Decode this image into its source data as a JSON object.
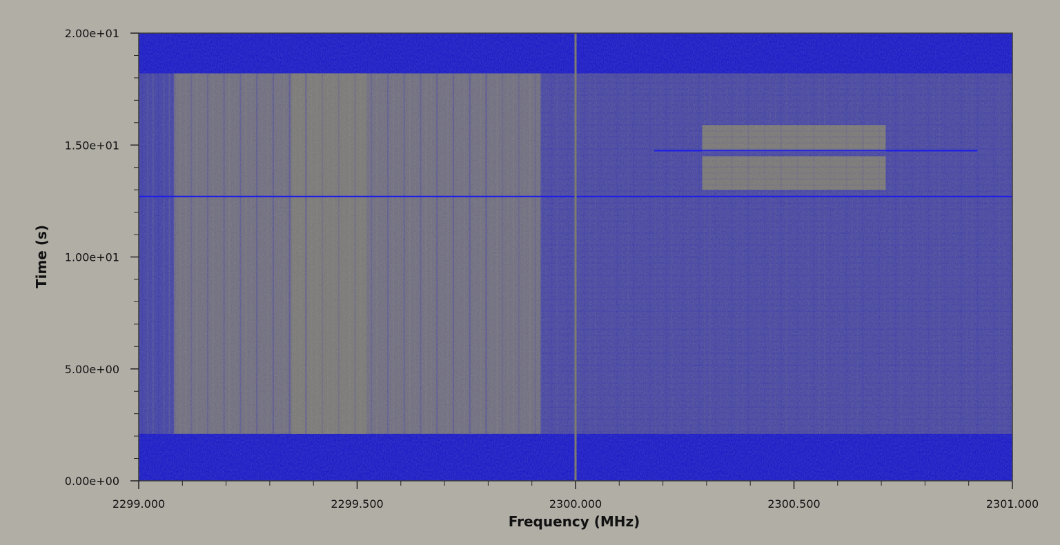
{
  "chart_data": {
    "type": "heatmap",
    "title": "",
    "xlabel": "Frequency (MHz)",
    "ylabel": "Time (s)",
    "xlim": [
      2299.0,
      2301.0
    ],
    "ylim": [
      0.0,
      20.0
    ],
    "x_ticks": [
      "2299.000",
      "2299.500",
      "2300.000",
      "2300.500",
      "2301.000"
    ],
    "x_tick_values": [
      2299.0,
      2299.5,
      2300.0,
      2300.5,
      2301.0
    ],
    "y_ticks": [
      "0.00e+00",
      "5.00e+00",
      "1.00e+01",
      "1.50e+01",
      "2.00e+01"
    ],
    "y_tick_values": [
      0,
      5,
      10,
      15,
      20
    ],
    "x_minor_step": 0.1,
    "y_minor_step": 1.0,
    "colors": {
      "background_low": "#1414c8",
      "signal_high": "#7e7c6e",
      "mixed": "#5a5aa0",
      "line_marker": "#1e1ee6"
    },
    "regions": [
      {
        "name": "signal-band-left",
        "x": [
          2299.08,
          2299.92
        ],
        "y": [
          2.1,
          18.2
        ],
        "intensity": 0.85
      },
      {
        "name": "signal-band-left-bright",
        "x": [
          2299.35,
          2299.52
        ],
        "y": [
          2.1,
          18.2
        ],
        "intensity": 0.95
      },
      {
        "name": "signal-band-right",
        "x": [
          2299.92,
          2301.0
        ],
        "y": [
          2.1,
          18.2
        ],
        "intensity": 0.45
      },
      {
        "name": "edge-left",
        "x": [
          2299.0,
          2299.08
        ],
        "y": [
          2.1,
          18.2
        ],
        "intensity": 0.4
      },
      {
        "name": "burst-upper",
        "x": [
          2300.29,
          2300.71
        ],
        "y": [
          14.7,
          15.9
        ],
        "intensity": 0.95
      },
      {
        "name": "burst-lower",
        "x": [
          2300.29,
          2300.71
        ],
        "y": [
          13.0,
          14.5
        ],
        "intensity": 0.95
      }
    ],
    "horizontal_lines": [
      {
        "y": 12.7,
        "x": [
          2299.0,
          2301.0
        ]
      },
      {
        "y": 14.75,
        "x": [
          2300.18,
          2300.92
        ]
      }
    ],
    "vertical_lines": [
      {
        "x": 2300.0,
        "y": [
          0.0,
          20.0
        ]
      }
    ]
  }
}
